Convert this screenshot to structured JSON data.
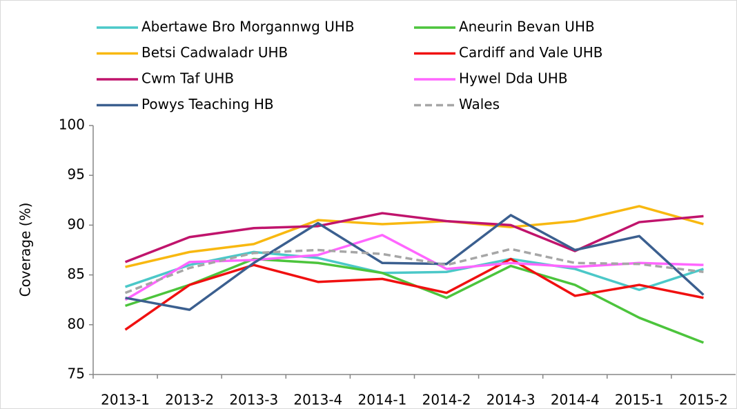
{
  "chart_data": {
    "type": "line",
    "y_label": "Coverage (%)",
    "categories": [
      "2013-1",
      "2013-2",
      "2013-3",
      "2013-4",
      "2014-1",
      "2014-2",
      "2014-3",
      "2014-4",
      "2015-1",
      "2015-2"
    ],
    "ylim": [
      75,
      100
    ],
    "yticks": [
      75,
      80,
      85,
      90,
      95,
      100
    ],
    "grid": false,
    "legend": "top",
    "series": [
      {
        "name": "Abertawe Bro Morgannwg UHB",
        "color": "#4bc8c8",
        "values": [
          83.8,
          86.0,
          87.3,
          86.7,
          85.2,
          85.3,
          86.6,
          85.6,
          83.5,
          85.6
        ]
      },
      {
        "name": "Aneurin Bevan UHB",
        "color": "#4cc43c",
        "values": [
          81.9,
          84.0,
          86.6,
          86.2,
          85.2,
          82.7,
          85.9,
          84.0,
          80.7,
          78.2
        ]
      },
      {
        "name": "Betsi Cadwaladr UHB",
        "color": "#f8b810",
        "values": [
          85.8,
          87.3,
          88.1,
          90.5,
          90.1,
          90.4,
          89.8,
          90.4,
          91.9,
          90.1
        ]
      },
      {
        "name": "Cardiff and Vale UHB",
        "color": "#f01010",
        "values": [
          79.5,
          84.0,
          86.0,
          84.3,
          84.6,
          83.2,
          86.6,
          82.9,
          84.0,
          82.7
        ]
      },
      {
        "name": "Cwm Taf UHB",
        "color": "#c0146c",
        "values": [
          86.3,
          88.8,
          89.7,
          89.9,
          91.2,
          90.4,
          90.0,
          87.4,
          90.3,
          90.9
        ]
      },
      {
        "name": "Hywel Dda UHB",
        "color": "#ff66ff",
        "values": [
          82.5,
          86.3,
          86.5,
          87.0,
          89.0,
          85.6,
          86.2,
          85.8,
          86.2,
          86.0
        ]
      },
      {
        "name": "Powys Teaching HB",
        "color": "#3b5f8f",
        "values": [
          82.7,
          81.5,
          86.2,
          90.2,
          86.2,
          86.1,
          91.0,
          87.5,
          88.9,
          83.0
        ]
      },
      {
        "name": "Wales",
        "color": "#a6a6a6",
        "dashed": true,
        "values": [
          83.2,
          85.7,
          87.2,
          87.5,
          87.1,
          86.0,
          87.6,
          86.2,
          86.1,
          85.3
        ]
      }
    ]
  }
}
